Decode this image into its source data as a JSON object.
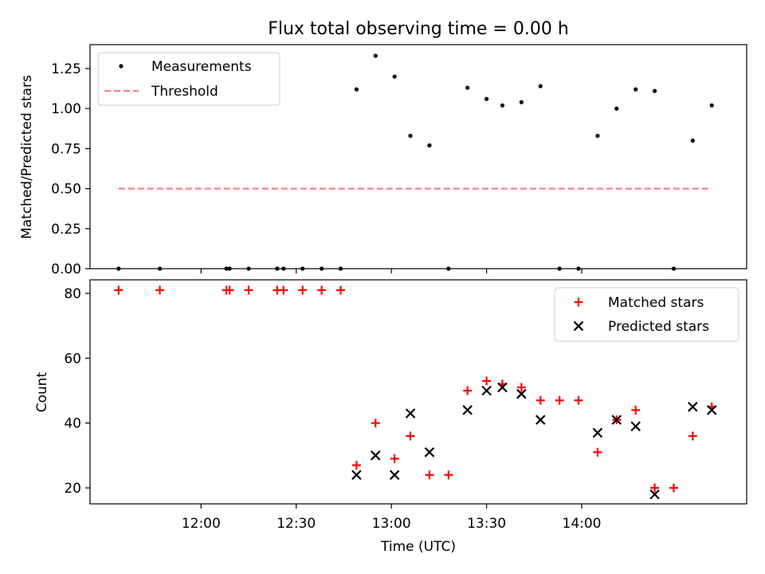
{
  "chart_data": [
    {
      "type": "scatter",
      "title": "Flux total observing time = 0.00 h",
      "xlabel": "",
      "ylabel": "Matched/Predicted stars",
      "ylim": [
        0,
        1.4
      ],
      "yticks": [
        "0.00",
        "0.25",
        "0.50",
        "0.75",
        "1.00",
        "1.25"
      ],
      "xlim": [
        "11:25",
        "14:52"
      ],
      "legend_position": "top-left",
      "series": [
        {
          "name": "Measurements",
          "color": "#000000",
          "marker": "dot",
          "points": [
            [
              "11:34",
              0
            ],
            [
              "11:47",
              0
            ],
            [
              "12:08",
              0
            ],
            [
              "12:09",
              0
            ],
            [
              "12:15",
              0
            ],
            [
              "12:24",
              0
            ],
            [
              "12:26",
              0
            ],
            [
              "12:32",
              0
            ],
            [
              "12:38",
              0
            ],
            [
              "12:44",
              0
            ],
            [
              "12:49",
              1.12
            ],
            [
              "12:55",
              1.33
            ],
            [
              "13:01",
              1.2
            ],
            [
              "13:06",
              0.83
            ],
            [
              "13:12",
              0.77
            ],
            [
              "13:18",
              0
            ],
            [
              "13:24",
              1.13
            ],
            [
              "13:30",
              1.06
            ],
            [
              "13:35",
              1.02
            ],
            [
              "13:41",
              1.04
            ],
            [
              "13:47",
              1.14
            ],
            [
              "13:53",
              0
            ],
            [
              "13:59",
              0
            ],
            [
              "14:05",
              0.83
            ],
            [
              "14:11",
              1.0
            ],
            [
              "14:17",
              1.12
            ],
            [
              "14:23",
              1.11
            ],
            [
              "14:29",
              0
            ],
            [
              "14:35",
              0.8
            ],
            [
              "14:41",
              1.02
            ]
          ]
        },
        {
          "name": "Threshold",
          "color": "#ff7f7f",
          "style": "dashed",
          "x": [
            "11:34",
            "14:41"
          ],
          "y": [
            0.5,
            0.5
          ]
        }
      ]
    },
    {
      "type": "scatter",
      "title": "",
      "xlabel": "Time (UTC)",
      "ylabel": "Count",
      "ylim": [
        15,
        84
      ],
      "yticks": [
        20,
        40,
        60,
        80
      ],
      "xlim": [
        "11:25",
        "14:52"
      ],
      "xticks": [
        "12:00",
        "12:30",
        "13:00",
        "13:30",
        "14:00"
      ],
      "legend_position": "top-right",
      "series": [
        {
          "name": "Matched stars",
          "color": "#ff0000",
          "marker": "plus",
          "points": [
            [
              "11:34",
              81
            ],
            [
              "11:47",
              81
            ],
            [
              "12:08",
              81
            ],
            [
              "12:09",
              81
            ],
            [
              "12:15",
              81
            ],
            [
              "12:24",
              81
            ],
            [
              "12:26",
              81
            ],
            [
              "12:32",
              81
            ],
            [
              "12:38",
              81
            ],
            [
              "12:44",
              81
            ],
            [
              "12:49",
              27
            ],
            [
              "12:55",
              40
            ],
            [
              "13:01",
              29
            ],
            [
              "13:06",
              36
            ],
            [
              "13:12",
              24
            ],
            [
              "13:18",
              24
            ],
            [
              "13:24",
              50
            ],
            [
              "13:30",
              53
            ],
            [
              "13:35",
              52
            ],
            [
              "13:41",
              51
            ],
            [
              "13:47",
              47
            ],
            [
              "13:53",
              47
            ],
            [
              "13:59",
              47
            ],
            [
              "14:05",
              31
            ],
            [
              "14:11",
              41
            ],
            [
              "14:17",
              44
            ],
            [
              "14:23",
              20
            ],
            [
              "14:29",
              20
            ],
            [
              "14:35",
              36
            ],
            [
              "14:41",
              45
            ]
          ]
        },
        {
          "name": "Predicted stars",
          "color": "#000000",
          "marker": "x",
          "points": [
            [
              "12:49",
              24
            ],
            [
              "12:55",
              30
            ],
            [
              "13:01",
              24
            ],
            [
              "13:06",
              43
            ],
            [
              "13:12",
              31
            ],
            [
              "13:24",
              44
            ],
            [
              "13:30",
              50
            ],
            [
              "13:35",
              51
            ],
            [
              "13:41",
              49
            ],
            [
              "13:47",
              41
            ],
            [
              "14:05",
              37
            ],
            [
              "14:11",
              41
            ],
            [
              "14:17",
              39
            ],
            [
              "14:23",
              18
            ],
            [
              "14:35",
              45
            ],
            [
              "14:41",
              44
            ]
          ]
        }
      ]
    }
  ]
}
